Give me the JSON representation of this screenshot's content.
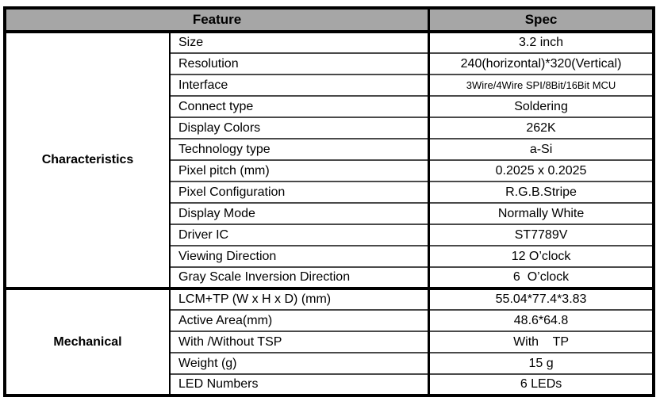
{
  "colors": {
    "header_bg": "#a6a6a6",
    "outer_border": "#000000",
    "row_line": "#4a4a4a"
  },
  "table": {
    "header": {
      "feature": "Feature",
      "spec": "Spec"
    },
    "sections": [
      {
        "group": "Characteristics",
        "rows": [
          {
            "feature": "Size",
            "spec": "3.2 inch"
          },
          {
            "feature": "Resolution",
            "spec": "240(horizontal)*320(Vertical)"
          },
          {
            "feature": "Interface",
            "spec": "3Wire/4Wire SPI/8Bit/16Bit MCU"
          },
          {
            "feature": "Connect type",
            "spec": "Soldering"
          },
          {
            "feature": "Display Colors",
            "spec": "262K"
          },
          {
            "feature": "Technology type",
            "spec": "a-Si"
          },
          {
            "feature": "Pixel pitch (mm)",
            "spec": "0.2025 x 0.2025"
          },
          {
            "feature": "Pixel Configuration",
            "spec": "R.G.B.Stripe"
          },
          {
            "feature": "Display Mode",
            "spec": "Normally White"
          },
          {
            "feature": "Driver IC",
            "spec": "ST7789V"
          },
          {
            "feature": "Viewing Direction",
            "spec": "12 O’clock"
          },
          {
            "feature": "Gray Scale Inversion Direction",
            "spec": "6  O’clock"
          }
        ]
      },
      {
        "group": "Mechanical",
        "rows": [
          {
            "feature": "LCM+TP (W x H x D) (mm)",
            "spec": "55.04*77.4*3.83"
          },
          {
            "feature": "Active Area(mm)",
            "spec": "48.6*64.8"
          },
          {
            "feature": "With /Without TSP",
            "spec": "With    TP"
          },
          {
            "feature": "Weight (g)",
            "spec": "15 g"
          },
          {
            "feature": "LED Numbers",
            "spec": "6 LEDs"
          }
        ]
      }
    ]
  }
}
